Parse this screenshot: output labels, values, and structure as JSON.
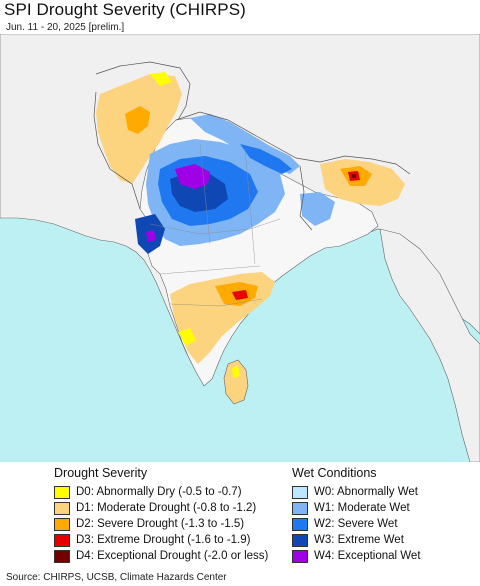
{
  "title": "SPI Drought Severity (CHIRPS)",
  "subtitle": "Jun. 11 - 20, 2025 [prelim.]",
  "legend": {
    "drought": {
      "heading": "Drought Severity",
      "items": [
        {
          "label": "D0: Abnormally Dry (-0.5 to -0.7)",
          "color": "#ffff00"
        },
        {
          "label": "D1: Moderate Drought (-0.8 to -1.2)",
          "color": "#fcd37f"
        },
        {
          "label": "D2: Severe Drought (-1.3 to -1.5)",
          "color": "#ffaa00"
        },
        {
          "label": "D3: Extreme Drought (-1.6 to -1.9)",
          "color": "#e60000"
        },
        {
          "label": "D4: Exceptional Drought (-2.0 or less)",
          "color": "#730000"
        }
      ]
    },
    "wet": {
      "heading": "Wet Conditions",
      "items": [
        {
          "label": "W0: Abnormally Wet",
          "color": "#bde6ff"
        },
        {
          "label": "W1: Moderate Wet",
          "color": "#7fb5f5"
        },
        {
          "label": "W2: Severe Wet",
          "color": "#1f78f0"
        },
        {
          "label": "W3: Extreme Wet",
          "color": "#0f48b4"
        },
        {
          "label": "W4: Exceptional Wet",
          "color": "#a000e6"
        }
      ]
    }
  },
  "source": "Source: CHIRPS, UCSB, Climate Hazards Center",
  "colors": {
    "ocean": "#bdf0f3",
    "land": "#f0f0f0",
    "border": "#666666"
  }
}
